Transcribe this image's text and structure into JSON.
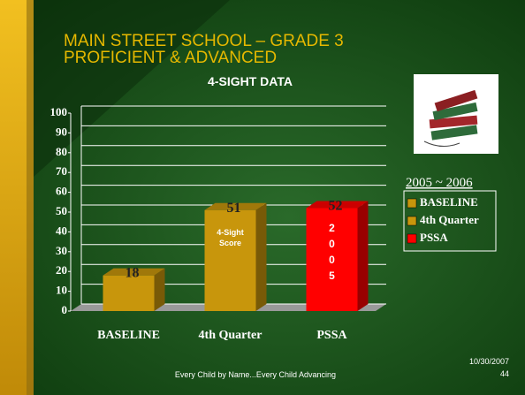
{
  "slide": {
    "title_lines": [
      "MAIN STREET SCHOOL – GRADE 3",
      "PROFICIENT & ADVANCED"
    ],
    "footer": "Every Child by Name...Every Child Advancing",
    "date": "10/30/2007",
    "page": "44"
  },
  "chart_data": {
    "type": "bar3d",
    "title": "4-SIGHT DATA",
    "categories": [
      "BASELINE",
      "4th Quarter",
      "PSSA"
    ],
    "values": [
      18,
      51,
      52
    ],
    "colors": [
      "#c8960c",
      "#c8960c",
      "#ff0000"
    ],
    "bar_annotations": [
      "4-Sight Score",
      "2 0 0 5"
    ],
    "legend_title": "2005 ~ 2006",
    "ylim": [
      0,
      100
    ],
    "yticks": [
      0,
      10,
      20,
      30,
      40,
      50,
      60,
      70,
      80,
      90,
      100
    ],
    "grid": true
  }
}
